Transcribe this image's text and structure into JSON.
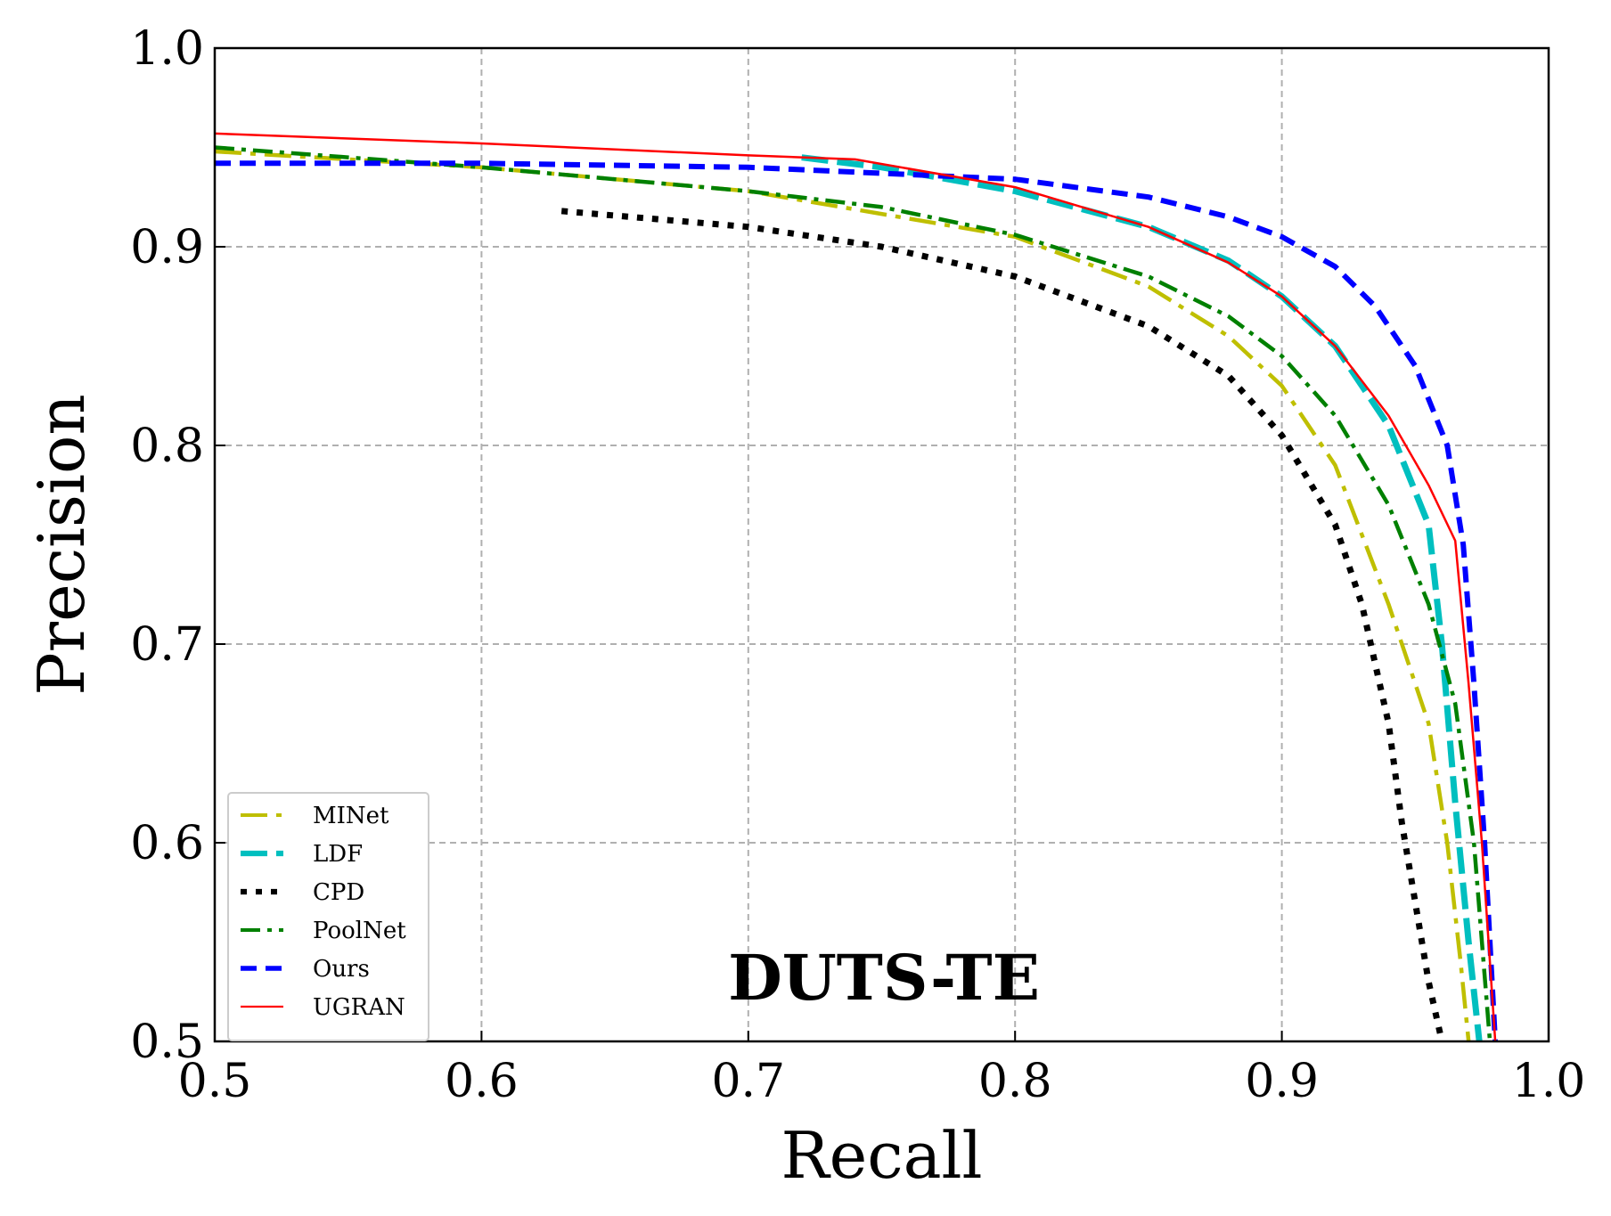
{
  "chart_data": {
    "type": "line",
    "title": "DUTS-TE",
    "xlabel": "Recall",
    "ylabel": "Precision",
    "xlim": [
      0.5,
      1.0
    ],
    "ylim": [
      0.5,
      1.0
    ],
    "xticks": [
      "0.5",
      "0.6",
      "0.7",
      "0.8",
      "0.9",
      "1.0"
    ],
    "yticks": [
      "0.5",
      "0.6",
      "0.7",
      "0.8",
      "0.9",
      "1.0"
    ],
    "grid": true,
    "legend_position": "bottom-left",
    "series": [
      {
        "name": "MINet",
        "color": "#bfbf00",
        "style": "dashdot",
        "x": [
          0.5,
          0.6,
          0.7,
          0.8,
          0.85,
          0.88,
          0.9,
          0.92,
          0.94,
          0.955,
          0.962,
          0.967,
          0.97
        ],
        "y": [
          0.948,
          0.94,
          0.928,
          0.905,
          0.88,
          0.855,
          0.83,
          0.79,
          0.72,
          0.66,
          0.6,
          0.54,
          0.5
        ]
      },
      {
        "name": "LDF",
        "color": "#00bfbf",
        "style": "dashed",
        "x": [
          0.72,
          0.75,
          0.8,
          0.85,
          0.88,
          0.9,
          0.92,
          0.94,
          0.955,
          0.96,
          0.965,
          0.97,
          0.974
        ],
        "y": [
          0.945,
          0.94,
          0.928,
          0.91,
          0.893,
          0.875,
          0.85,
          0.81,
          0.76,
          0.7,
          0.62,
          0.55,
          0.5
        ]
      },
      {
        "name": "CPD",
        "color": "#000000",
        "style": "dotted",
        "x": [
          0.63,
          0.7,
          0.75,
          0.8,
          0.85,
          0.88,
          0.9,
          0.92,
          0.93,
          0.94,
          0.945,
          0.95,
          0.955,
          0.96
        ],
        "y": [
          0.918,
          0.91,
          0.9,
          0.885,
          0.86,
          0.835,
          0.805,
          0.76,
          0.72,
          0.66,
          0.61,
          0.57,
          0.53,
          0.5
        ]
      },
      {
        "name": "PoolNet",
        "color": "#008000",
        "style": "dashdot",
        "x": [
          0.5,
          0.6,
          0.7,
          0.75,
          0.8,
          0.85,
          0.88,
          0.9,
          0.92,
          0.94,
          0.955,
          0.965,
          0.972,
          0.978
        ],
        "y": [
          0.95,
          0.94,
          0.928,
          0.92,
          0.906,
          0.885,
          0.865,
          0.845,
          0.815,
          0.77,
          0.72,
          0.67,
          0.6,
          0.5
        ]
      },
      {
        "name": "Ours",
        "color": "#0000ff",
        "style": "dashed",
        "x": [
          0.5,
          0.6,
          0.7,
          0.8,
          0.85,
          0.88,
          0.9,
          0.92,
          0.935,
          0.95,
          0.962,
          0.968,
          0.972,
          0.976,
          0.98
        ],
        "y": [
          0.942,
          0.942,
          0.94,
          0.934,
          0.925,
          0.915,
          0.905,
          0.89,
          0.87,
          0.84,
          0.8,
          0.75,
          0.68,
          0.6,
          0.5
        ]
      },
      {
        "name": "UGRAN",
        "color": "#ff0000",
        "style": "solid",
        "x": [
          0.5,
          0.6,
          0.7,
          0.74,
          0.8,
          0.85,
          0.88,
          0.9,
          0.92,
          0.94,
          0.955,
          0.965,
          0.97,
          0.975,
          0.98
        ],
        "y": [
          0.957,
          0.952,
          0.946,
          0.944,
          0.93,
          0.91,
          0.892,
          0.875,
          0.85,
          0.815,
          0.78,
          0.752,
          0.68,
          0.6,
          0.5
        ]
      }
    ]
  }
}
